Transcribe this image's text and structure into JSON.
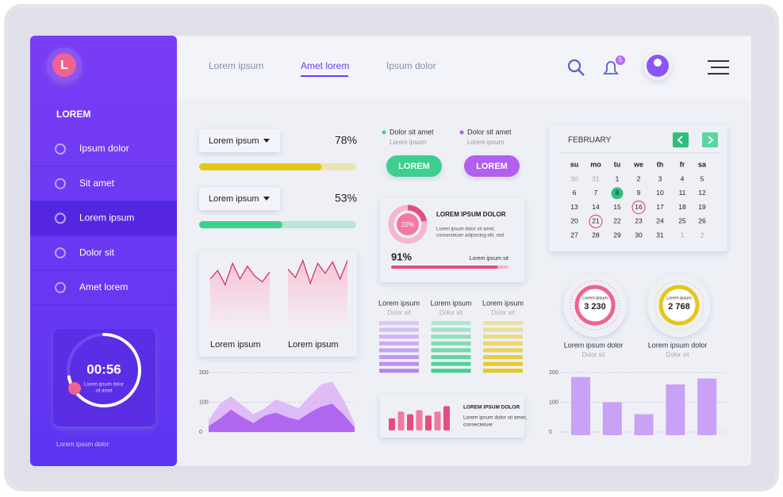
{
  "sidebar": {
    "logo": "L",
    "title": "LOREM",
    "menu": [
      "Ipsum dolor",
      "Sit amet",
      "Lorem ipsum",
      "Dolor sit",
      "Amet lorem"
    ],
    "active": 2,
    "timer": {
      "time": "00:56",
      "caption": [
        "Lorem ipsum dolor",
        "sit amet"
      ]
    },
    "footer": "Lorem ipsum dolor"
  },
  "nav": {
    "tabs": [
      "Lorem ipsum",
      "Amet lorem",
      "Ipsum dolor"
    ],
    "active": 1,
    "badge": "5"
  },
  "progress": [
    {
      "label": "Lorem ipsum",
      "value": 78,
      "value_label": "78%",
      "color": "#e6c619"
    },
    {
      "label": "Lorem ipsum",
      "value": 53,
      "value_label": "53%",
      "color": "#3ecf8e"
    }
  ],
  "mini_charts": [
    {
      "label": "Lorem ipsum",
      "values": [
        70,
        82,
        62,
        92,
        70,
        88,
        74,
        66,
        80
      ]
    },
    {
      "label": "Lorem ipsum",
      "values": [
        84,
        72,
        96,
        64,
        92,
        78,
        94,
        70,
        96
      ]
    }
  ],
  "area_chart": {
    "type": "area",
    "ylim": [
      0,
      200
    ],
    "yticks": [
      0,
      100,
      200
    ],
    "series": [
      {
        "color": "#dcb3f7",
        "values": [
          40,
          95,
          120,
          90,
          60,
          80,
          110,
          95,
          80,
          120,
          160,
          170,
          110,
          30
        ]
      },
      {
        "color": "#a451ee",
        "values": [
          20,
          45,
          75,
          50,
          30,
          55,
          65,
          50,
          40,
          65,
          85,
          95,
          60,
          15
        ]
      }
    ]
  },
  "legend": [
    {
      "name": "Dolor sit amet",
      "sub": "Lorem ipsum",
      "color": "#3ecf8e"
    },
    {
      "name": "Dolor sit amet",
      "sub": "Lorem ipsum",
      "color": "#b25ff0"
    }
  ],
  "buttons": [
    {
      "label": "LOREM",
      "color": "#3ecf8e"
    },
    {
      "label": "LOREM",
      "color": "#b25ff0"
    }
  ],
  "donut_card": {
    "value": 22,
    "value_label": "22%",
    "title": "LOREM IPSUM DOLOR",
    "text": [
      "Lorem ipsum dolor sit amet,",
      "consectetuer adipiscing elit, sed"
    ],
    "progress": 91,
    "progress_label": "91%",
    "caption": "Lorem ipsum sit"
  },
  "stripes": [
    {
      "title": "Lorem ipsum",
      "sub": "Dolor sit",
      "color": "#b67ff2"
    },
    {
      "title": "Lorem ipsum",
      "sub": "Dolor sit",
      "color": "#3ecf8e"
    },
    {
      "title": "Lorem ipsum",
      "sub": "Dolor sit",
      "color": "#e6c619"
    }
  ],
  "bar_card": {
    "ylim": [
      0,
      100
    ],
    "values": [
      45,
      70,
      60,
      75,
      55,
      70,
      90
    ],
    "title": "LOREM IPSUM DOLOR",
    "text": [
      "Lorem ipsum dolor sit amet,",
      "consectetuer"
    ]
  },
  "calendar": {
    "month": "FEBRUARY",
    "weekdays": [
      "su",
      "mo",
      "tu",
      "we",
      "th",
      "fr",
      "sa"
    ],
    "weeks": [
      [
        30,
        31,
        1,
        2,
        3,
        4,
        5
      ],
      [
        6,
        7,
        8,
        9,
        10,
        11,
        12
      ],
      [
        13,
        14,
        15,
        16,
        17,
        18,
        19
      ],
      [
        20,
        21,
        22,
        23,
        24,
        25,
        26
      ],
      [
        27,
        28,
        29,
        30,
        31,
        1,
        2
      ]
    ],
    "today": 8,
    "marked": [
      16,
      21
    ]
  },
  "gauges": [
    {
      "label": "Lorem ipsum",
      "value": "3 230",
      "title": "Lorem ipsum dolor",
      "sub": "Dolor sit",
      "color": "#f0628f"
    },
    {
      "label": "Lorem ipsum",
      "value": "2 768",
      "title": "Lorem ipsum dolor",
      "sub": "Dolor sit",
      "color": "#e6c619"
    }
  ],
  "bar_chart": {
    "type": "bar",
    "ylim": [
      0,
      200
    ],
    "yticks": [
      0,
      100,
      200
    ],
    "values": [
      185,
      100,
      60,
      160,
      180
    ],
    "color": "#c9a2f7"
  }
}
